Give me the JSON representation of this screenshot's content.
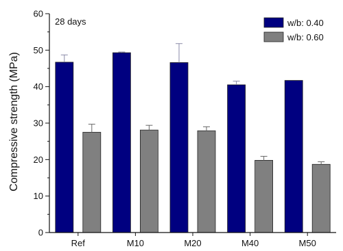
{
  "chart_data": {
    "type": "bar",
    "annotation": "28 days",
    "xlabel": "",
    "ylabel": "Compressive strength (MPa)",
    "ylim": [
      0,
      60
    ],
    "yticks": [
      0,
      10,
      20,
      30,
      40,
      50,
      60
    ],
    "categories": [
      "Ref",
      "M10",
      "M20",
      "M40",
      "M50"
    ],
    "series": [
      {
        "name": "w/b: 0.40",
        "color": "#000080",
        "values": [
          46.7,
          49.3,
          46.6,
          40.5,
          41.7
        ],
        "errors": [
          2.0,
          0.2,
          5.2,
          1.0,
          0.0
        ]
      },
      {
        "name": "w/b: 0.60",
        "color": "#808080",
        "values": [
          27.5,
          28.1,
          27.9,
          19.8,
          18.7
        ],
        "errors": [
          2.2,
          1.3,
          1.1,
          1.1,
          0.7
        ]
      }
    ],
    "legend_position": "top-right",
    "grid": false
  }
}
